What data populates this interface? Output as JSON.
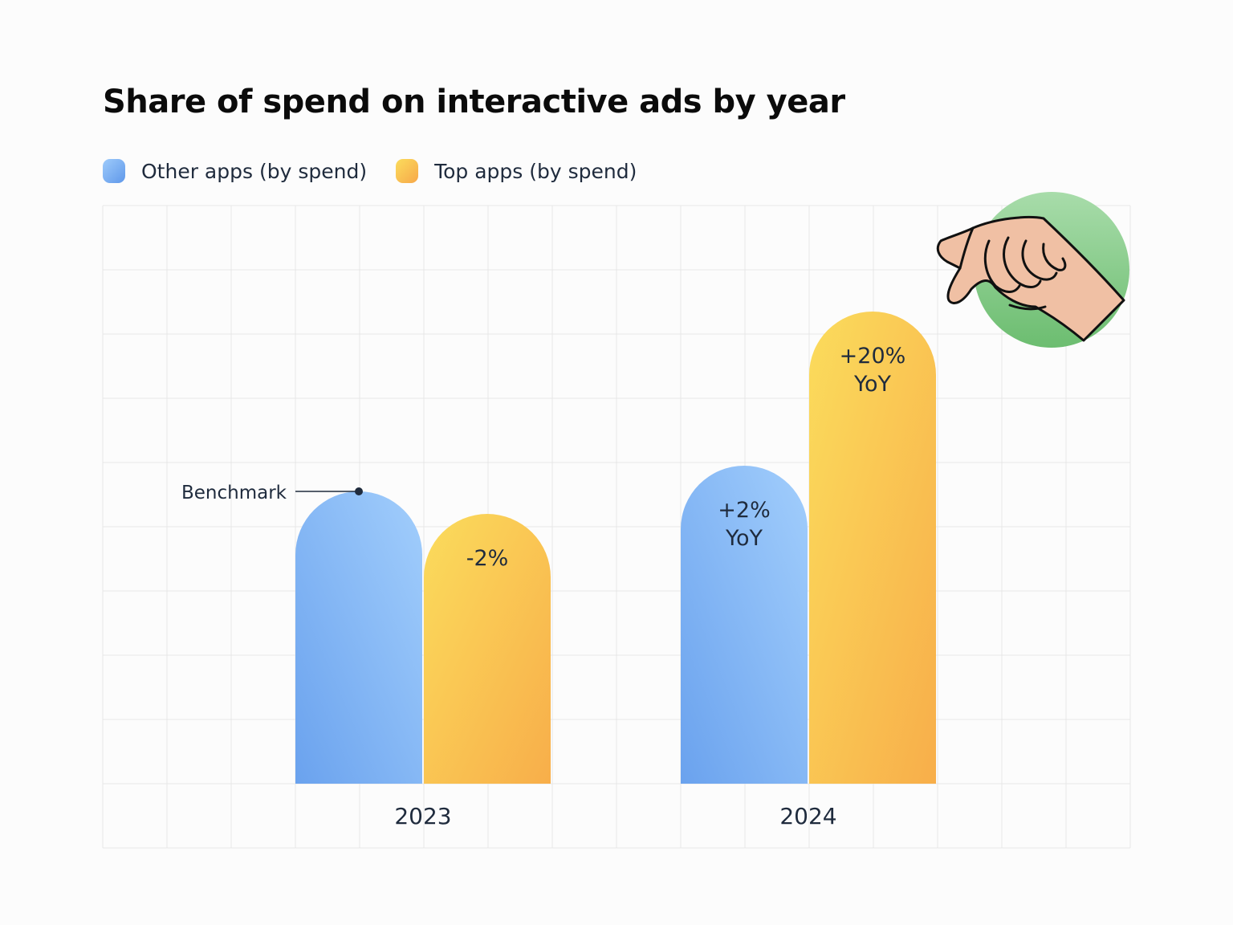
{
  "chart_data": {
    "type": "bar",
    "title": "Share of spend on interactive ads by year",
    "categories": [
      "2023",
      "2024"
    ],
    "series": [
      {
        "name": "Other apps (by spend)",
        "values": [
          4.55,
          4.95
        ],
        "color": "#72a9f2"
      },
      {
        "name": "Top apps (by spend)",
        "values": [
          4.2,
          7.35
        ],
        "color": "#f8c04c"
      }
    ],
    "data_labels": [
      [
        "",
        "+2%\nYoY"
      ],
      [
        "-2%",
        "+20%\nYoY"
      ]
    ],
    "ylim": [
      0,
      9
    ],
    "grid": true,
    "legend": "top-left",
    "annotation": {
      "text": "Benchmark",
      "series": 0,
      "category": 0
    }
  },
  "colors": {
    "other_top": "#9ecbfb",
    "other_bottom": "#6ca4ef",
    "top_top": "#fbdc5c",
    "top_bottom": "#f8b04a",
    "grid": "#e7e7e7",
    "hand_circle": "#7cc47f"
  },
  "decoration": {
    "icon": "pointing-hand-icon"
  }
}
